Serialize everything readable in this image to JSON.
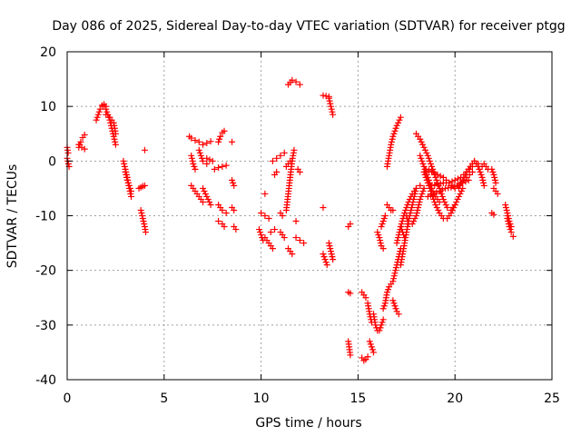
{
  "chart_data": {
    "type": "scatter",
    "title": "Day 086 of 2025, Sidereal Day-to-day VTEC variation (SDTVAR) for receiver ptgg",
    "xlabel": "GPS time / hours",
    "ylabel": "SDTVAR / TECUs",
    "xlim": [
      0,
      25
    ],
    "ylim": [
      -40,
      20
    ],
    "xticks": [
      0,
      5,
      10,
      15,
      20,
      25
    ],
    "yticks": [
      -40,
      -30,
      -20,
      -10,
      0,
      10,
      20
    ],
    "grid": true,
    "marker": "+",
    "series_color": "#ff0000",
    "segments": [
      {
        "x": [
          0.0,
          0.05
        ],
        "y": [
          2.5,
          1.5
        ]
      },
      {
        "x": [
          0.0,
          0.1
        ],
        "y": [
          0.5,
          -1.0
        ]
      },
      {
        "x": [
          0.6,
          0.7,
          0.8,
          0.9
        ],
        "y": [
          2.5,
          3.5,
          4.3,
          4.8
        ]
      },
      {
        "x": [
          0.6,
          0.75,
          0.9
        ],
        "y": [
          3.0,
          2.5,
          2.2
        ]
      },
      {
        "x": [
          1.5,
          1.6,
          1.7,
          1.8,
          1.9,
          2.0
        ],
        "y": [
          7.5,
          8.5,
          9.5,
          10.2,
          10.4,
          10.0
        ]
      },
      {
        "x": [
          1.9,
          2.0,
          2.1,
          2.2,
          2.3,
          2.4,
          2.5
        ],
        "y": [
          10.0,
          9.5,
          8.5,
          7.5,
          6.0,
          4.5,
          3.0
        ]
      },
      {
        "x": [
          2.0,
          2.2,
          2.4,
          2.5
        ],
        "y": [
          8.5,
          8.0,
          7.0,
          5.0
        ]
      },
      {
        "x": [
          2.9,
          3.0,
          3.1,
          3.2,
          3.3
        ],
        "y": [
          0.0,
          -1.5,
          -3.0,
          -5.0,
          -6.5
        ]
      },
      {
        "x": [
          3.0,
          3.1,
          3.2,
          3.3
        ],
        "y": [
          -2.0,
          -3.5,
          -4.5,
          -5.5
        ]
      },
      {
        "x": [
          3.7,
          3.8,
          3.9,
          4.0
        ],
        "y": [
          -5.0,
          -4.8,
          -4.6,
          -4.5
        ]
      },
      {
        "x": [
          3.8,
          3.9,
          4.0,
          4.05
        ],
        "y": [
          -9.0,
          -10.5,
          -12.0,
          -13.0
        ]
      },
      {
        "x": [
          4.0
        ],
        "y": [
          2.0
        ]
      },
      {
        "x": [
          6.3,
          6.4,
          6.6,
          6.8
        ],
        "y": [
          4.5,
          4.2,
          3.8,
          3.5
        ]
      },
      {
        "x": [
          6.4,
          6.5,
          6.6
        ],
        "y": [
          1.0,
          -0.5,
          -1.5
        ]
      },
      {
        "x": [
          6.4,
          6.6,
          6.8,
          7.0
        ],
        "y": [
          -4.5,
          -5.5,
          -6.5,
          -7.5
        ]
      },
      {
        "x": [
          6.8,
          6.9,
          7.0,
          7.2
        ],
        "y": [
          2.0,
          1.0,
          0.0,
          -0.5
        ]
      },
      {
        "x": [
          7.0,
          7.2,
          7.4
        ],
        "y": [
          3.0,
          3.3,
          3.6
        ]
      },
      {
        "x": [
          7.0,
          7.2,
          7.4
        ],
        "y": [
          -5.0,
          -6.5,
          -8.0
        ]
      },
      {
        "x": [
          7.2,
          7.5
        ],
        "y": [
          0.5,
          0.0
        ]
      },
      {
        "x": [
          7.8,
          7.9,
          8.0,
          8.1
        ],
        "y": [
          3.5,
          4.5,
          5.2,
          5.5
        ]
      },
      {
        "x": [
          7.6,
          7.8,
          8.0,
          8.2
        ],
        "y": [
          -1.5,
          -1.2,
          -1.0,
          -0.8
        ]
      },
      {
        "x": [
          7.8,
          8.0,
          8.2
        ],
        "y": [
          -8.0,
          -9.0,
          -9.5
        ]
      },
      {
        "x": [
          7.8,
          8.0,
          8.1
        ],
        "y": [
          -11.0,
          -11.5,
          -12.0
        ]
      },
      {
        "x": [
          8.5
        ],
        "y": [
          3.5
        ]
      },
      {
        "x": [
          8.5,
          8.6
        ],
        "y": [
          -3.5,
          -4.5
        ]
      },
      {
        "x": [
          8.5,
          8.6
        ],
        "y": [
          -8.5,
          -9.0
        ]
      },
      {
        "x": [
          8.6,
          8.7
        ],
        "y": [
          -12.0,
          -12.5
        ]
      },
      {
        "x": [
          9.9,
          10.0,
          10.1
        ],
        "y": [
          -12.5,
          -13.5,
          -14.5
        ]
      },
      {
        "x": [
          10.0,
          10.2,
          10.4
        ],
        "y": [
          -9.5,
          -10.0,
          -10.5
        ]
      },
      {
        "x": [
          10.2
        ],
        "y": [
          -6.0
        ]
      },
      {
        "x": [
          10.2,
          10.4,
          10.6
        ],
        "y": [
          -14.0,
          -15.0,
          -16.0
        ]
      },
      {
        "x": [
          10.5,
          10.7
        ],
        "y": [
          -13.0,
          -12.5
        ]
      },
      {
        "x": [
          10.7,
          10.8
        ],
        "y": [
          -2.5,
          -2.0
        ]
      },
      {
        "x": [
          10.6,
          10.8,
          11.0,
          11.2
        ],
        "y": [
          0.0,
          0.5,
          1.0,
          1.5
        ]
      },
      {
        "x": [
          11.0,
          11.1
        ],
        "y": [
          -9.5,
          -10.0
        ]
      },
      {
        "x": [
          11.0,
          11.2
        ],
        "y": [
          -13.0,
          -14.0
        ]
      },
      {
        "x": [
          11.3,
          11.4,
          11.5,
          11.6,
          11.7
        ],
        "y": [
          -9.0,
          -6.0,
          -3.0,
          0.0,
          2.0
        ]
      },
      {
        "x": [
          11.3,
          11.4,
          11.5
        ],
        "y": [
          -1.0,
          -0.5,
          0.0
        ]
      },
      {
        "x": [
          11.4,
          11.5,
          11.6
        ],
        "y": [
          -16.0,
          -16.5,
          -17.0
        ]
      },
      {
        "x": [
          11.4,
          11.6,
          11.8,
          12.0
        ],
        "y": [
          14.0,
          14.8,
          14.5,
          14.0
        ]
      },
      {
        "x": [
          11.8
        ],
        "y": [
          -11.0
        ]
      },
      {
        "x": [
          11.8,
          12.0,
          12.2
        ],
        "y": [
          -14.0,
          -14.5,
          -15.0
        ]
      },
      {
        "x": [
          11.9,
          12.0
        ],
        "y": [
          -1.5,
          -2.0
        ]
      },
      {
        "x": [
          13.2,
          13.5
        ],
        "y": [
          12.0,
          11.8
        ]
      },
      {
        "x": [
          13.5,
          13.6,
          13.7
        ],
        "y": [
          11.5,
          10.0,
          8.5
        ]
      },
      {
        "x": [
          13.2
        ],
        "y": [
          -8.5
        ]
      },
      {
        "x": [
          13.2,
          13.4
        ],
        "y": [
          -17.0,
          -19.0
        ]
      },
      {
        "x": [
          13.5,
          13.6,
          13.7
        ],
        "y": [
          -15.0,
          -16.5,
          -18.0
        ]
      },
      {
        "x": [
          14.5,
          14.6
        ],
        "y": [
          -12.0,
          -11.5
        ]
      },
      {
        "x": [
          14.5,
          14.6
        ],
        "y": [
          -24.0,
          -24.2
        ]
      },
      {
        "x": [
          14.5,
          14.6
        ],
        "y": [
          -33.0,
          -35.5
        ]
      },
      {
        "x": [
          15.2,
          15.3,
          15.4
        ],
        "y": [
          -24.0,
          -24.5,
          -25.0
        ]
      },
      {
        "x": [
          15.2,
          15.3,
          15.4,
          15.5
        ],
        "y": [
          -36.0,
          -36.5,
          -36.3,
          -35.8
        ]
      },
      {
        "x": [
          15.5,
          15.6,
          15.7
        ],
        "y": [
          -26.0,
          -28.0,
          -29.5
        ]
      },
      {
        "x": [
          15.6,
          15.7,
          15.8
        ],
        "y": [
          -33.0,
          -34.0,
          -35.0
        ]
      },
      {
        "x": [
          15.8,
          15.9,
          16.0,
          16.1,
          16.2,
          16.3
        ],
        "y": [
          -28.0,
          -30.0,
          -31.0,
          -31.0,
          -30.0,
          -29.0
        ]
      },
      {
        "x": [
          16.0,
          16.1,
          16.2,
          16.3
        ],
        "y": [
          -13.0,
          -14.0,
          -15.5,
          -16.0
        ]
      },
      {
        "x": [
          16.2,
          16.3,
          16.4
        ],
        "y": [
          -12.0,
          -11.0,
          -10.0
        ]
      },
      {
        "x": [
          16.3,
          16.4,
          16.5,
          16.6,
          16.8,
          17.0,
          17.2
        ],
        "y": [
          -27.0,
          -26.0,
          -24.0,
          -23.0,
          -22.0,
          -19.0,
          -16.0
        ]
      },
      {
        "x": [
          16.5,
          16.6,
          16.7,
          16.8
        ],
        "y": [
          -8.0,
          -8.5,
          -9.0,
          -9.0
        ]
      },
      {
        "x": [
          16.5,
          16.6,
          16.7,
          16.8,
          17.0,
          17.2
        ],
        "y": [
          -1.0,
          1.0,
          3.0,
          4.5,
          6.5,
          8.0
        ]
      },
      {
        "x": [
          16.8,
          16.9,
          17.0,
          17.1
        ],
        "y": [
          -25.5,
          -26.5,
          -27.5,
          -28.0
        ]
      },
      {
        "x": [
          17.0,
          17.2,
          17.4,
          17.6,
          17.8,
          18.0,
          18.2,
          18.4
        ],
        "y": [
          -15.0,
          -12.0,
          -9.5,
          -7.5,
          -6.0,
          -5.0,
          -4.5,
          -5.0
        ]
      },
      {
        "x": [
          17.2,
          17.4,
          17.6,
          17.8,
          18.0
        ],
        "y": [
          -19.0,
          -15.0,
          -11.0,
          -8.0,
          -5.0
        ]
      },
      {
        "x": [
          17.2,
          17.3,
          17.4
        ],
        "y": [
          -12.0,
          -13.0,
          -14.0
        ]
      },
      {
        "x": [
          17.5,
          17.6,
          17.8,
          18.0,
          18.2,
          18.4
        ],
        "y": [
          -10.0,
          -11.5,
          -11.5,
          -10.0,
          -7.0,
          -5.0
        ]
      },
      {
        "x": [
          18.0,
          18.2,
          18.4,
          18.6,
          18.8,
          19.0,
          19.2,
          19.4,
          19.6,
          19.8,
          20.0
        ],
        "y": [
          5.0,
          4.0,
          2.5,
          1.0,
          -1.0,
          -3.0,
          -5.0,
          -7.0,
          -8.5,
          -9.0,
          -8.0
        ]
      },
      {
        "x": [
          18.4,
          18.6,
          18.8,
          19.0,
          19.2,
          19.4,
          19.6,
          19.8,
          20.0,
          20.2,
          20.4
        ],
        "y": [
          -2.0,
          -4.0,
          -6.0,
          -8.0,
          -9.5,
          -10.5,
          -10.5,
          -9.5,
          -8.0,
          -6.5,
          -5.0
        ]
      },
      {
        "x": [
          18.2,
          18.4,
          18.6,
          18.8,
          19.0,
          19.2
        ],
        "y": [
          1.0,
          -1.0,
          -3.0,
          -5.0,
          -6.5,
          -7.5
        ]
      },
      {
        "x": [
          18.5,
          18.8,
          19.1,
          19.4,
          19.7,
          20.0,
          20.3,
          20.6,
          20.9
        ],
        "y": [
          -1.5,
          -2.0,
          -2.5,
          -3.0,
          -4.0,
          -5.0,
          -4.0,
          -3.0,
          -2.0
        ]
      },
      {
        "x": [
          18.6,
          18.9,
          19.2,
          19.5,
          19.8,
          20.1,
          20.4,
          20.7
        ],
        "y": [
          -6.5,
          -6.0,
          -5.5,
          -5.0,
          -4.8,
          -4.5,
          -4.0,
          -3.5
        ]
      },
      {
        "x": [
          18.8,
          19.1,
          19.4,
          19.7,
          20.0,
          20.3,
          20.6,
          20.9,
          21.1
        ],
        "y": [
          -4.5,
          -4.2,
          -4.0,
          -4.0,
          -3.5,
          -3.0,
          -2.0,
          -1.0,
          -0.5
        ]
      },
      {
        "x": [
          20.2,
          20.4,
          20.6,
          20.8,
          21.0,
          21.2
        ],
        "y": [
          -5.0,
          -3.5,
          -2.0,
          -1.0,
          0.0,
          -1.0
        ]
      },
      {
        "x": [
          20.6,
          20.8,
          21.0,
          21.2,
          21.4
        ],
        "y": [
          -2.0,
          -1.0,
          0.0,
          -0.5,
          -1.0
        ]
      },
      {
        "x": [
          21.2,
          21.3,
          21.4,
          21.5
        ],
        "y": [
          -1.0,
          -2.0,
          -3.0,
          -4.5
        ]
      },
      {
        "x": [
          21.5,
          21.6,
          21.7
        ],
        "y": [
          -0.5,
          -1.0,
          -1.5
        ]
      },
      {
        "x": [
          21.9,
          22.0,
          22.1
        ],
        "y": [
          -1.5,
          -2.5,
          -4.0
        ]
      },
      {
        "x": [
          22.0,
          22.2
        ],
        "y": [
          -5.0,
          -6.0
        ]
      },
      {
        "x": [
          21.9,
          22.0
        ],
        "y": [
          -9.5,
          -9.8
        ]
      },
      {
        "x": [
          22.6,
          22.7,
          22.8,
          22.9
        ],
        "y": [
          -8.0,
          -9.5,
          -11.0,
          -12.0
        ]
      },
      {
        "x": [
          22.7,
          22.8,
          22.9,
          23.0
        ],
        "y": [
          -10.5,
          -12.0,
          -13.0,
          -13.8
        ]
      }
    ]
  }
}
